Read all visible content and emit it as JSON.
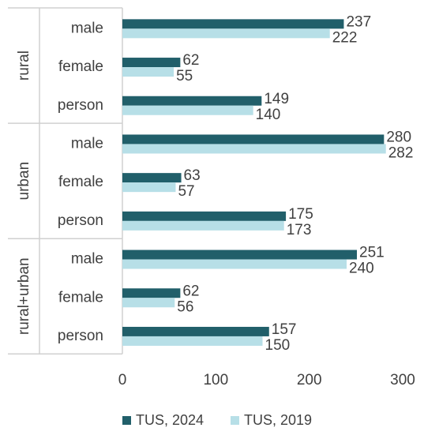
{
  "chart_data": {
    "type": "bar",
    "orientation": "horizontal",
    "title": "",
    "xlabel": "",
    "ylabel": "",
    "xlim": [
      0,
      300
    ],
    "xticks": [
      0,
      100,
      200,
      300
    ],
    "grid": false,
    "legend_position": "bottom",
    "groups": [
      {
        "label": "rural",
        "categories": [
          "male",
          "female",
          "person"
        ]
      },
      {
        "label": "urban",
        "categories": [
          "male",
          "female",
          "person"
        ]
      },
      {
        "label": "rural+urban",
        "categories": [
          "male",
          "female",
          "person"
        ]
      }
    ],
    "series": [
      {
        "name": "TUS, 2024",
        "color": "#215f6a",
        "values": [
          237,
          62,
          149,
          280,
          63,
          175,
          251,
          62,
          157
        ]
      },
      {
        "name": "TUS, 2019",
        "color": "#b7dfe7",
        "values": [
          222,
          55,
          140,
          282,
          57,
          173,
          240,
          56,
          150
        ]
      }
    ]
  }
}
